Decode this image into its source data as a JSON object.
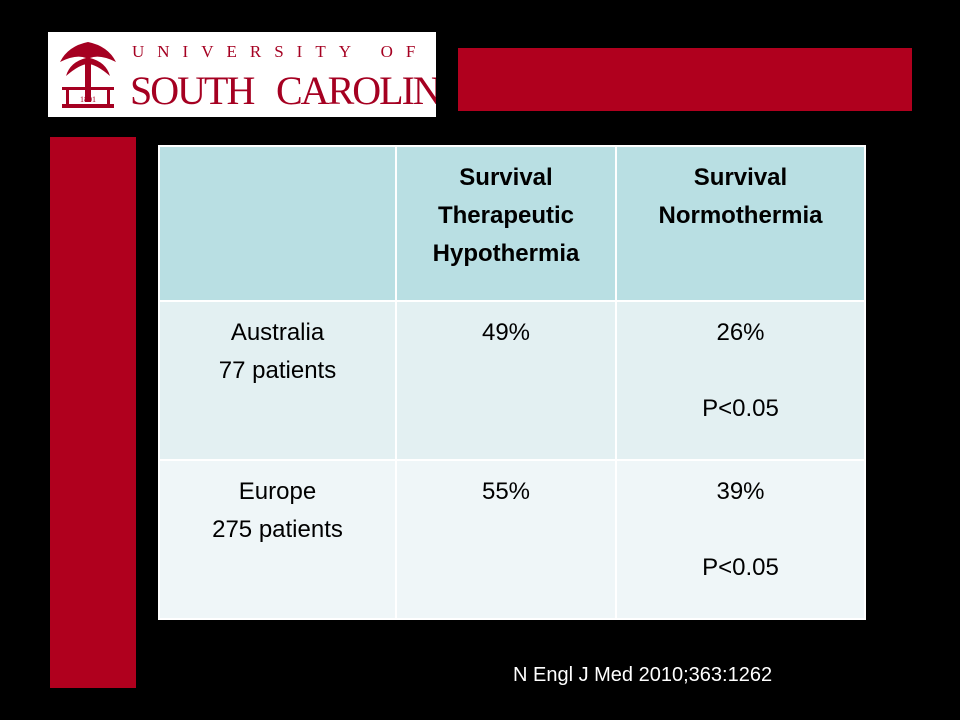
{
  "logo": {
    "top": "UNIVERSITY OF",
    "left_word": "SOUTH",
    "right_word": "CAROLINA",
    "seal_year": "1801"
  },
  "table": {
    "header": [
      "Survival Therapeutic Hypothermia",
      "Survival Normothermia"
    ],
    "rows": [
      {
        "name": "Australia",
        "detail": "77 patients",
        "hypothermia": "49%",
        "normothermia": "26%",
        "p": "P<0.05"
      },
      {
        "name": "Europe",
        "detail": "275 patients",
        "hypothermia": "55%",
        "normothermia": "39%",
        "p": "P<0.05"
      }
    ]
  },
  "citation": "N Engl J Med 2010;363:1262"
}
